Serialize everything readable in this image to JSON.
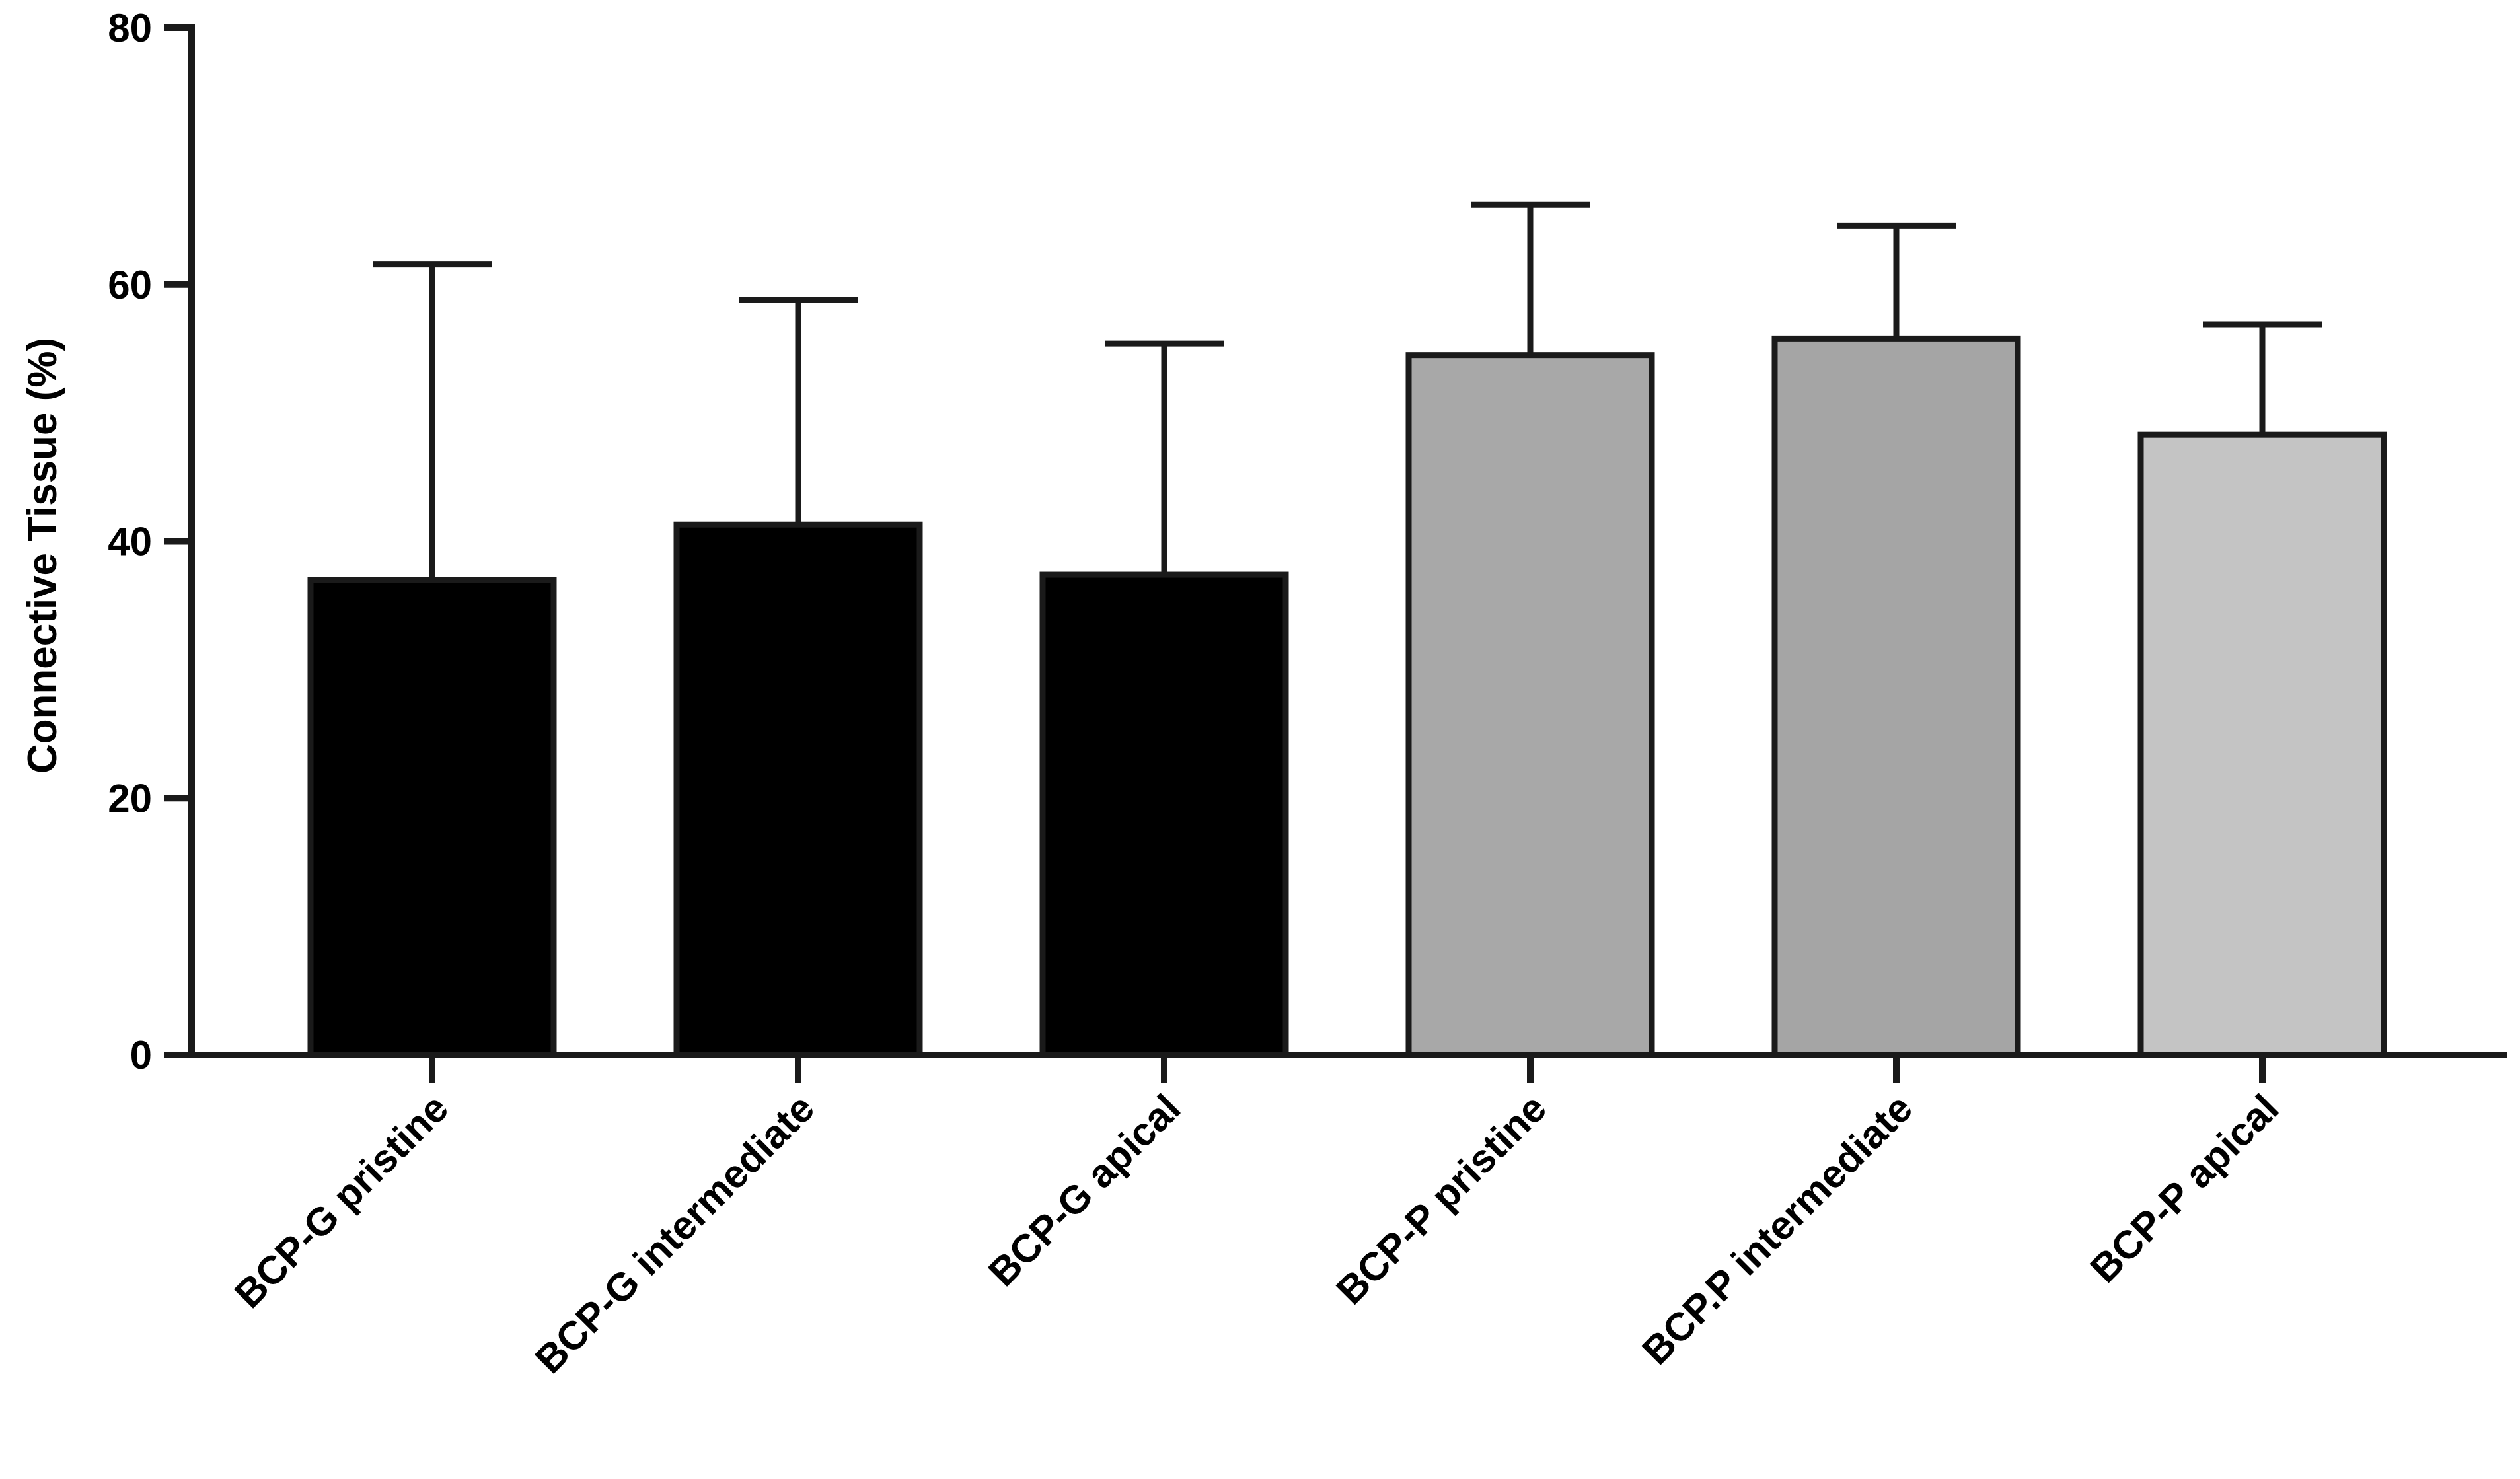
{
  "chart_data": {
    "type": "bar",
    "title": "",
    "xlabel": "",
    "ylabel": "Connective Tissue (%)",
    "ylim": [
      0,
      80
    ],
    "yticks": [
      0,
      20,
      40,
      60,
      80
    ],
    "grid": false,
    "legend": "none",
    "categories": [
      "BCP-G pristine",
      "BCP-G intermediate",
      "BCP-G apical",
      "BCP-P pristine",
      "BCP.P intermediate",
      "BCP-P apical"
    ],
    "values": [
      37.0,
      41.3,
      37.4,
      54.5,
      55.8,
      48.3
    ],
    "error_upper": [
      24.6,
      17.5,
      18.0,
      11.7,
      8.8,
      8.6
    ],
    "colors": [
      "#000000",
      "#000000",
      "#000000",
      "#a8a8a8",
      "#a5a5a5",
      "#c4c4c4"
    ],
    "axis_color": "#1a1a1a"
  }
}
